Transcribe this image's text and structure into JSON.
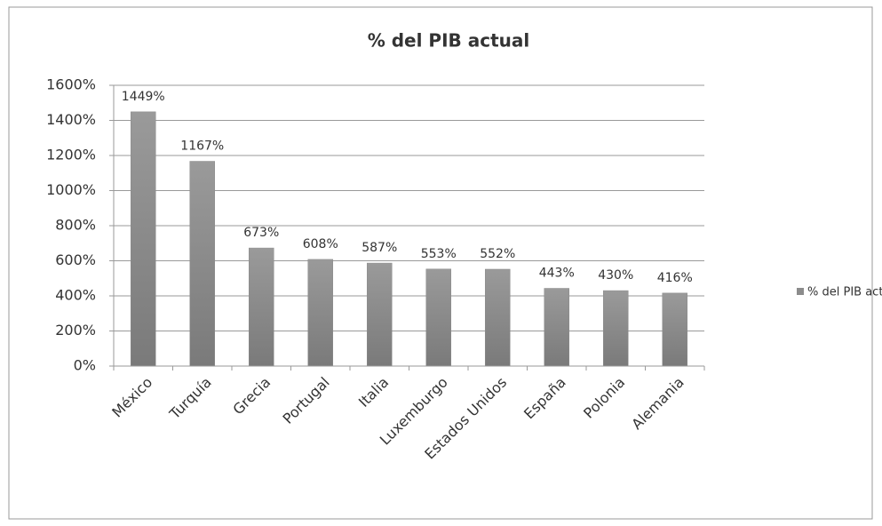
{
  "chart_data": {
    "type": "bar",
    "title": "% del PIB actual",
    "categories": [
      "México",
      "Turquía",
      "Grecia",
      "Portugal",
      "Italia",
      "Luxemburgo",
      "Estados Unidos",
      "España",
      "Polonia",
      "Alemania"
    ],
    "series": [
      {
        "name": "% del PIB actual",
        "color": "#8c8c8c",
        "values": [
          1449,
          1167,
          673,
          608,
          587,
          553,
          552,
          443,
          430,
          416
        ],
        "value_labels": [
          "1449%",
          "1167%",
          "673%",
          "608%",
          "587%",
          "553%",
          "552%",
          "443%",
          "430%",
          "416%"
        ]
      }
    ],
    "ylim": [
      0,
      1600
    ],
    "yticks": [
      {
        "value": 0,
        "label": "0%"
      },
      {
        "value": 200,
        "label": "200%"
      },
      {
        "value": 400,
        "label": "400%"
      },
      {
        "value": 600,
        "label": "600%"
      },
      {
        "value": 800,
        "label": "800%"
      },
      {
        "value": 1000,
        "label": "1000%"
      },
      {
        "value": 1200,
        "label": "1200%"
      },
      {
        "value": 1400,
        "label": "1400%"
      },
      {
        "value": 1600,
        "label": "1600%"
      }
    ],
    "grid": true,
    "legend": "right"
  }
}
